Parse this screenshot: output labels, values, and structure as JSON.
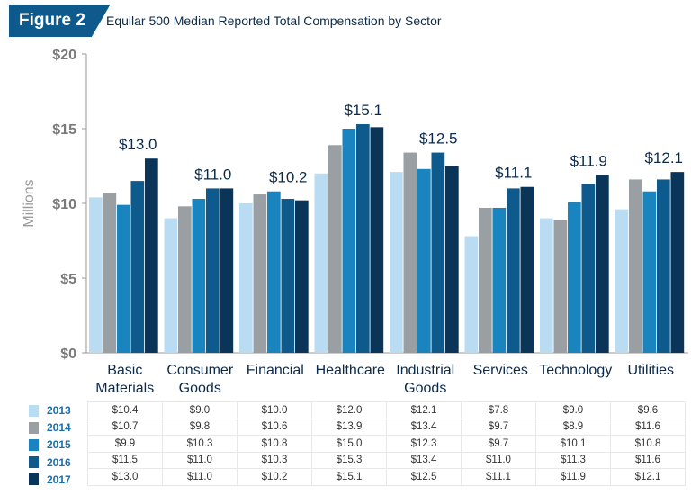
{
  "figure_label": "Figure 2",
  "title": "Equilar 500 Median Reported Total Compensation by Sector",
  "chart_data": {
    "type": "bar",
    "title": "Equilar 500 Median Reported Total Compensation by Sector",
    "ylabel": "Millions",
    "ylim": [
      0,
      20
    ],
    "yticks": [
      "$0",
      "$5",
      "$10",
      "$15",
      "$20"
    ],
    "grid": false,
    "legend": "table-left",
    "categories": [
      "Basic Materials",
      "Consumer Goods",
      "Financial",
      "Healthcare",
      "Industrial Goods",
      "Services",
      "Technology",
      "Utilities"
    ],
    "series": [
      {
        "name": "2013",
        "color": "#b9dcf2",
        "values": [
          10.4,
          9.0,
          10.0,
          12.0,
          12.1,
          7.8,
          9.0,
          9.6
        ]
      },
      {
        "name": "2014",
        "color": "#9a9fa3",
        "values": [
          10.7,
          9.8,
          10.6,
          13.9,
          13.4,
          9.7,
          8.9,
          11.6
        ]
      },
      {
        "name": "2015",
        "color": "#1a84be",
        "values": [
          9.9,
          10.3,
          10.8,
          15.0,
          12.3,
          9.7,
          10.1,
          10.8
        ]
      },
      {
        "name": "2016",
        "color": "#0e5a8c",
        "values": [
          11.5,
          11.0,
          10.3,
          15.3,
          13.4,
          11.0,
          11.3,
          11.6
        ]
      },
      {
        "name": "2017",
        "color": "#0a3558",
        "values": [
          13.0,
          11.0,
          10.2,
          15.1,
          12.5,
          11.1,
          11.9,
          12.1
        ]
      }
    ],
    "annotations": [
      "$13.0",
      "$11.0",
      "$10.2",
      "$15.1",
      "$12.5",
      "$11.1",
      "$11.9",
      "$12.1"
    ],
    "table": [
      [
        "$10.4",
        "$9.0",
        "$10.0",
        "$12.0",
        "$12.1",
        "$7.8",
        "$9.0",
        "$9.6"
      ],
      [
        "$10.7",
        "$9.8",
        "$10.6",
        "$13.9",
        "$13.4",
        "$9.7",
        "$8.9",
        "$11.6"
      ],
      [
        "$9.9",
        "$10.3",
        "$10.8",
        "$15.0",
        "$12.3",
        "$9.7",
        "$10.1",
        "$10.8"
      ],
      [
        "$11.5",
        "$11.0",
        "$10.3",
        "$15.3",
        "$13.4",
        "$11.0",
        "$11.3",
        "$11.6"
      ],
      [
        "$13.0",
        "$11.0",
        "$10.2",
        "$15.1",
        "$12.5",
        "$11.1",
        "$11.9",
        "$12.1"
      ]
    ]
  }
}
